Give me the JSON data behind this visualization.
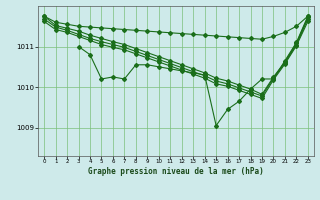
{
  "title": "Graphe pression niveau de la mer (hPa)",
  "background_color": "#ceeaea",
  "grid_color": "#7bbf7b",
  "line_color": "#1a6e1a",
  "xlim": [
    -0.5,
    23.5
  ],
  "ylim": [
    1008.3,
    1012.0
  ],
  "yticks": [
    1009,
    1010,
    1011
  ],
  "xticks": [
    0,
    1,
    2,
    3,
    4,
    5,
    6,
    7,
    8,
    9,
    10,
    11,
    12,
    13,
    14,
    15,
    16,
    17,
    18,
    19,
    20,
    21,
    22,
    23
  ],
  "main_series_x": [
    3,
    4,
    5,
    6,
    7,
    8,
    9,
    10,
    11,
    12,
    13,
    14,
    15,
    16,
    17,
    18,
    19,
    20,
    21,
    22,
    23
  ],
  "main_series_y": [
    1011.0,
    1010.8,
    1010.2,
    1010.25,
    1010.2,
    1010.55,
    1010.55,
    1010.5,
    1010.45,
    1010.4,
    1010.35,
    1010.3,
    1009.05,
    1009.45,
    1009.65,
    1009.95,
    1010.2,
    1010.2,
    1010.65,
    1011.1,
    1011.75
  ],
  "line1_x": [
    0,
    1,
    2,
    3,
    4,
    5,
    6,
    7,
    8,
    9,
    10,
    11,
    12,
    13,
    14,
    15,
    16,
    17,
    18,
    19,
    20,
    21,
    22,
    23
  ],
  "line1_y": [
    1011.75,
    1011.52,
    1011.45,
    1011.38,
    1011.28,
    1011.2,
    1011.12,
    1011.05,
    1010.95,
    1010.85,
    1010.75,
    1010.65,
    1010.55,
    1010.45,
    1010.35,
    1010.22,
    1010.15,
    1010.05,
    1009.95,
    1009.82,
    1010.25,
    1010.62,
    1011.08,
    1011.72
  ],
  "line2_x": [
    0,
    1,
    2,
    3,
    4,
    5,
    6,
    7,
    8,
    9,
    10,
    11,
    12,
    13,
    14,
    15,
    16,
    17,
    18,
    19,
    20,
    21,
    22,
    23
  ],
  "line2_y": [
    1011.68,
    1011.48,
    1011.4,
    1011.3,
    1011.2,
    1011.12,
    1011.05,
    1010.98,
    1010.88,
    1010.78,
    1010.68,
    1010.58,
    1010.48,
    1010.38,
    1010.28,
    1010.15,
    1010.08,
    1009.98,
    1009.88,
    1009.78,
    1010.22,
    1010.6,
    1011.05,
    1011.68
  ],
  "line3_x": [
    0,
    1,
    2,
    3,
    4,
    5,
    6,
    7,
    8,
    9,
    10,
    11,
    12,
    13,
    14,
    15,
    16,
    17,
    18,
    19,
    20,
    21,
    22,
    23
  ],
  "line3_y": [
    1011.62,
    1011.42,
    1011.35,
    1011.25,
    1011.15,
    1011.05,
    1010.98,
    1010.92,
    1010.82,
    1010.72,
    1010.62,
    1010.52,
    1010.42,
    1010.32,
    1010.22,
    1010.08,
    1010.02,
    1009.92,
    1009.82,
    1009.72,
    1010.18,
    1010.57,
    1011.02,
    1011.62
  ],
  "flat_line_x": [
    0,
    1,
    2,
    3,
    4,
    5,
    6,
    7,
    8,
    9,
    10,
    11,
    12,
    13,
    14,
    15,
    16,
    17,
    18,
    19,
    20,
    21,
    22,
    23
  ],
  "flat_line_y": [
    1011.75,
    1011.6,
    1011.55,
    1011.5,
    1011.48,
    1011.46,
    1011.44,
    1011.42,
    1011.4,
    1011.38,
    1011.36,
    1011.34,
    1011.32,
    1011.3,
    1011.28,
    1011.26,
    1011.24,
    1011.22,
    1011.2,
    1011.18,
    1011.25,
    1011.35,
    1011.5,
    1011.75
  ]
}
